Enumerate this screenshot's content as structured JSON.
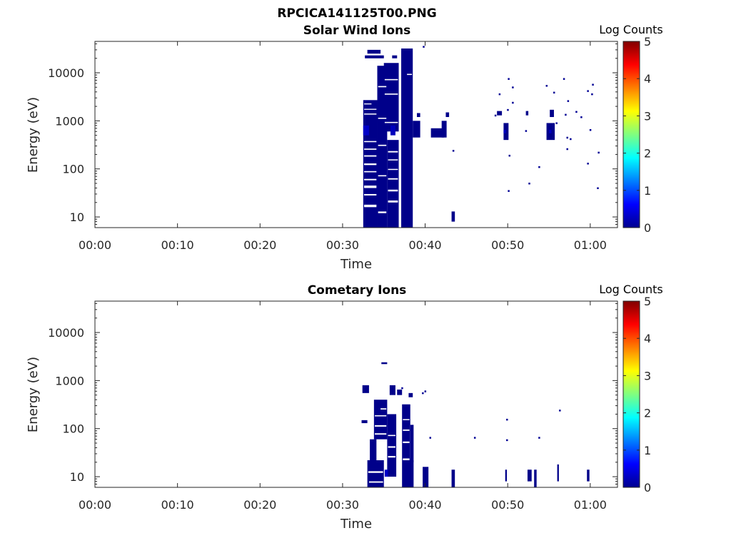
{
  "figure_title": "RPCICA141125T00.PNG",
  "chart_data": [
    {
      "type": "heatmap",
      "title": "Solar Wind Ions",
      "xlabel": "Time",
      "ylabel": "Energy (eV)",
      "x_tick_labels": [
        "00:00",
        "00:10",
        "00:20",
        "00:30",
        "00:40",
        "00:50",
        "01:00"
      ],
      "x_ticks_min": [
        0,
        10,
        20,
        30,
        40,
        50,
        60
      ],
      "xlim_min": [
        0,
        63.3
      ],
      "y_tick_labels": [
        "10",
        "100",
        "1000",
        "10000"
      ],
      "y_ticks": [
        10,
        100,
        1000,
        10000
      ],
      "ylim": [
        6,
        45000
      ],
      "yscale": "log",
      "colorbar": {
        "label": "Log Counts",
        "ticks": [
          "0",
          "1",
          "2",
          "3",
          "4",
          "5"
        ],
        "range": [
          0,
          5
        ],
        "colormap": "jet"
      },
      "patches": [
        [
          32.5,
          34.2,
          6,
          2700,
          0.05
        ],
        [
          33.0,
          34.6,
          25000,
          30000,
          0.05
        ],
        [
          32.7,
          35.0,
          20000,
          23000,
          0.05
        ],
        [
          34.2,
          35.4,
          6,
          14000,
          0.05
        ],
        [
          35.0,
          36.8,
          600,
          16000,
          0.05
        ],
        [
          35.4,
          36.8,
          6,
          400,
          0.05
        ],
        [
          36.0,
          36.6,
          20000,
          23000,
          0.05
        ],
        [
          37.1,
          38.5,
          6,
          32000,
          0.05
        ],
        [
          37.6,
          38.2,
          20000,
          26000,
          0.05
        ],
        [
          38.5,
          39.4,
          450,
          1000,
          0.05
        ],
        [
          39.0,
          39.4,
          1200,
          1450,
          0.05
        ],
        [
          40.7,
          42.3,
          450,
          700,
          0.05
        ],
        [
          42.0,
          42.6,
          450,
          1000,
          0.05
        ],
        [
          42.5,
          42.9,
          1200,
          1500,
          0.05
        ],
        [
          43.2,
          43.6,
          8,
          13,
          0.05
        ],
        [
          49.5,
          50.1,
          400,
          900,
          0.05
        ],
        [
          48.7,
          49.3,
          1300,
          1600,
          0.05
        ],
        [
          52.2,
          52.5,
          1300,
          1600,
          0.05
        ],
        [
          54.7,
          55.7,
          400,
          900,
          0.05
        ],
        [
          55.1,
          55.6,
          1200,
          1700,
          0.05
        ],
        [
          32.5,
          33.2,
          500,
          800,
          0.35
        ],
        [
          35.8,
          36.4,
          500,
          800,
          0.3
        ],
        [
          49.5,
          49.8,
          550,
          650,
          0.3
        ],
        [
          55.0,
          55.3,
          550,
          650,
          0.3
        ]
      ],
      "gaps": [
        [
          32.6,
          34.1,
          1350,
          1420
        ],
        [
          32.6,
          34.1,
          1700,
          1780
        ],
        [
          32.6,
          33.5,
          2200,
          2300
        ],
        [
          32.6,
          34.1,
          360,
          380
        ],
        [
          32.6,
          34.1,
          250,
          265
        ],
        [
          32.6,
          34.1,
          180,
          192
        ],
        [
          32.6,
          34.1,
          120,
          130
        ],
        [
          32.6,
          34.1,
          85,
          90
        ],
        [
          32.6,
          34.1,
          58,
          62
        ],
        [
          32.6,
          34.1,
          40,
          45
        ],
        [
          32.6,
          34.1,
          28,
          30
        ],
        [
          32.6,
          34.1,
          16,
          18
        ],
        [
          35.1,
          36.7,
          900,
          950
        ],
        [
          35.1,
          36.7,
          3500,
          3700
        ],
        [
          35.1,
          36.7,
          7000,
          7400
        ],
        [
          35.5,
          36.7,
          220,
          235
        ],
        [
          35.5,
          36.7,
          150,
          158
        ],
        [
          35.5,
          36.7,
          95,
          100
        ],
        [
          35.5,
          36.7,
          60,
          64
        ],
        [
          35.5,
          36.7,
          34,
          37
        ],
        [
          35.5,
          36.7,
          20,
          22
        ],
        [
          34.3,
          35.3,
          5000,
          5300
        ],
        [
          34.3,
          35.3,
          1100,
          1160
        ],
        [
          34.3,
          35.3,
          300,
          318
        ],
        [
          34.3,
          35.3,
          70,
          74
        ],
        [
          34.3,
          35.3,
          12,
          13
        ],
        [
          37.8,
          38.4,
          9000,
          9500
        ]
      ],
      "dots": [
        [
          39.8,
          35000
        ],
        [
          50.1,
          7500
        ],
        [
          50.6,
          5000
        ],
        [
          49.0,
          3600
        ],
        [
          50.6,
          2400
        ],
        [
          50.0,
          1700
        ],
        [
          48.5,
          1300
        ],
        [
          54.7,
          5400
        ],
        [
          55.6,
          3900
        ],
        [
          56.8,
          7500
        ],
        [
          57.3,
          2600
        ],
        [
          57.0,
          1350
        ],
        [
          58.9,
          1200
        ],
        [
          58.3,
          1550
        ],
        [
          59.7,
          4200
        ],
        [
          60.3,
          5700
        ],
        [
          60.2,
          3600
        ],
        [
          60.0,
          650
        ],
        [
          55.9,
          900
        ],
        [
          57.2,
          450
        ],
        [
          57.6,
          420
        ],
        [
          57.2,
          260
        ],
        [
          61.0,
          220
        ],
        [
          50.2,
          190
        ],
        [
          52.2,
          620
        ],
        [
          53.8,
          110
        ],
        [
          59.7,
          130
        ],
        [
          52.6,
          50
        ],
        [
          50.1,
          35
        ],
        [
          60.9,
          40
        ],
        [
          43.4,
          240
        ]
      ]
    },
    {
      "type": "heatmap",
      "title": "Cometary Ions",
      "xlabel": "Time",
      "ylabel": "Energy (eV)",
      "x_tick_labels": [
        "00:00",
        "00:10",
        "00:20",
        "00:30",
        "00:40",
        "00:50",
        "01:00"
      ],
      "x_ticks_min": [
        0,
        10,
        20,
        30,
        40,
        50,
        60
      ],
      "xlim_min": [
        0,
        63.3
      ],
      "y_tick_labels": [
        "10",
        "100",
        "1000",
        "10000"
      ],
      "y_ticks": [
        10,
        100,
        1000,
        10000
      ],
      "ylim": [
        6,
        45000
      ],
      "yscale": "log",
      "colorbar": {
        "label": "Log Counts",
        "ticks": [
          "0",
          "1",
          "2",
          "3",
          "4",
          "5"
        ],
        "range": [
          0,
          5
        ],
        "colormap": "jet"
      },
      "patches": [
        [
          32.4,
          33.2,
          550,
          800,
          0.05
        ],
        [
          33.0,
          35.0,
          6,
          22,
          0.05
        ],
        [
          33.3,
          34.1,
          22,
          60,
          0.05
        ],
        [
          33.8,
          35.4,
          60,
          400,
          0.05
        ],
        [
          35.4,
          36.5,
          10,
          200,
          0.05
        ],
        [
          35.7,
          36.4,
          500,
          800,
          0.05
        ],
        [
          36.6,
          37.2,
          500,
          650,
          0.05
        ],
        [
          37.2,
          38.2,
          6,
          320,
          0.05
        ],
        [
          38.2,
          38.6,
          20,
          120,
          0.05
        ],
        [
          38.1,
          38.6,
          6,
          22,
          0.05
        ],
        [
          39.7,
          40.4,
          6,
          16,
          0.05
        ],
        [
          43.2,
          43.6,
          6,
          14,
          0.05
        ],
        [
          49.7,
          49.9,
          8,
          14,
          0.05
        ],
        [
          52.4,
          52.9,
          8,
          14,
          0.05
        ],
        [
          53.2,
          53.5,
          6,
          14,
          0.05
        ],
        [
          56.0,
          56.2,
          8,
          18,
          0.05
        ],
        [
          59.6,
          59.9,
          8,
          14,
          0.05
        ],
        [
          34.7,
          35.4,
          2200,
          2400,
          0.05
        ],
        [
          32.3,
          33.0,
          130,
          150,
          0.05
        ],
        [
          38.0,
          38.5,
          450,
          550,
          0.05
        ],
        [
          35.1,
          35.5,
          10,
          14,
          0.35
        ]
      ],
      "gaps": [
        [
          33.1,
          34.9,
          12,
          13
        ],
        [
          33.9,
          35.3,
          180,
          190
        ],
        [
          33.9,
          35.3,
          110,
          118
        ],
        [
          33.9,
          35.3,
          75,
          80
        ],
        [
          34.6,
          35.3,
          250,
          265
        ],
        [
          35.5,
          36.4,
          40,
          43
        ],
        [
          35.5,
          36.4,
          70,
          74
        ],
        [
          35.5,
          36.4,
          25,
          27
        ],
        [
          37.3,
          38.1,
          50,
          54
        ],
        [
          37.3,
          38.1,
          90,
          96
        ],
        [
          37.3,
          38.1,
          150,
          158
        ],
        [
          37.3,
          38.1,
          22,
          24
        ],
        [
          33.2,
          34.9,
          7.5,
          8
        ]
      ],
      "dots": [
        [
          40.6,
          65
        ],
        [
          46.0,
          65
        ],
        [
          53.8,
          65
        ],
        [
          49.9,
          155
        ],
        [
          56.3,
          240
        ],
        [
          49.9,
          58
        ],
        [
          39.7,
          550
        ],
        [
          40.0,
          600
        ],
        [
          37.2,
          700
        ]
      ]
    }
  ]
}
